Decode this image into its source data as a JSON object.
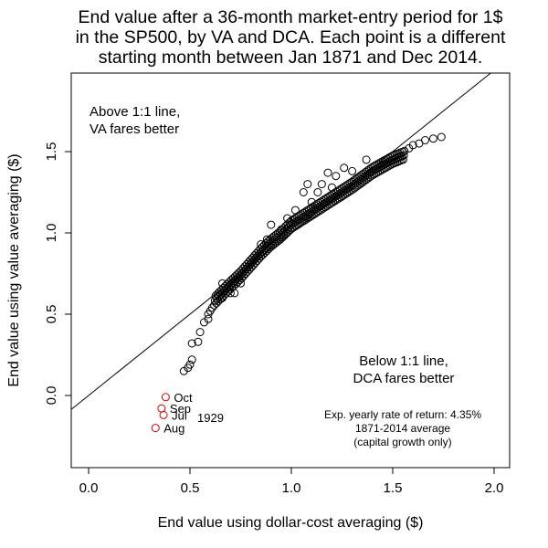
{
  "chart_data": {
    "type": "scatter",
    "title_lines": [
      "End value after a 36-month market-entry period for 1$",
      "in the SP500, by VA and DCA. Each point is a different",
      "starting month between Jan 1871 and Dec 2014."
    ],
    "xlabel": "End value using dollar-cost averaging ($)",
    "ylabel": "End value using value averaging ($)",
    "xlim": [
      0.0,
      2.0
    ],
    "ylim": [
      -0.25,
      1.85
    ],
    "x_ticks": [
      0.0,
      0.5,
      1.0,
      1.5,
      2.0
    ],
    "x_tick_labels": [
      "0.0",
      "0.5",
      "1.0",
      "1.5",
      "2.0"
    ],
    "y_ticks": [
      0.0,
      0.5,
      1.0,
      1.5
    ],
    "y_tick_labels": [
      "0.0",
      "0.5",
      "1.0",
      "1.5"
    ],
    "grid": false,
    "reference_line": {
      "label": "1:1 line",
      "slope": 1,
      "intercept": 0
    },
    "annotations": {
      "above": [
        "Above 1:1 line,",
        "VA fares better"
      ],
      "below": [
        "Below 1:1 line,",
        "DCA fares better"
      ],
      "return_note": [
        "Exp. yearly rate of return: 4.35%",
        "1871-2014 average",
        "(capital growth only)"
      ],
      "year": "1929"
    },
    "highlight_color": "#e00000",
    "point_color": "#000000",
    "highlighted_points": [
      {
        "label": "Oct",
        "x": 0.38,
        "y": -0.01
      },
      {
        "label": "Sep",
        "x": 0.36,
        "y": -0.08
      },
      {
        "label": "Jul",
        "x": 0.37,
        "y": -0.12
      },
      {
        "label": "Aug",
        "x": 0.33,
        "y": -0.2
      }
    ],
    "series": [
      {
        "scattered_points": [
          [
            0.47,
            0.15
          ],
          [
            0.49,
            0.17
          ],
          [
            0.5,
            0.19
          ],
          [
            0.51,
            0.22
          ],
          [
            0.51,
            0.32
          ],
          [
            0.54,
            0.33
          ],
          [
            0.55,
            0.39
          ],
          [
            0.57,
            0.45
          ],
          [
            0.59,
            0.47
          ],
          [
            0.59,
            0.5
          ],
          [
            0.6,
            0.52
          ],
          [
            0.61,
            0.54
          ],
          [
            0.66,
            0.6
          ],
          [
            0.66,
            0.69
          ],
          [
            0.7,
            0.63
          ],
          [
            0.72,
            0.63
          ],
          [
            0.75,
            0.69
          ],
          [
            0.9,
            1.05
          ],
          [
            1.06,
            1.25
          ],
          [
            1.08,
            1.3
          ],
          [
            1.1,
            1.19
          ],
          [
            1.15,
            1.3
          ],
          [
            1.18,
            1.37
          ],
          [
            1.22,
            1.35
          ],
          [
            1.26,
            1.4
          ],
          [
            1.3,
            1.38
          ],
          [
            1.37,
            1.45
          ],
          [
            1.58,
            1.52
          ],
          [
            1.6,
            1.54
          ],
          [
            1.63,
            1.55
          ],
          [
            1.66,
            1.57
          ],
          [
            1.7,
            1.58
          ],
          [
            1.74,
            1.59
          ],
          [
            0.95,
            1.02
          ],
          [
            0.98,
            1.09
          ],
          [
            1.02,
            1.14
          ],
          [
            1.13,
            1.25
          ],
          [
            1.2,
            1.28
          ],
          [
            0.85,
            0.93
          ],
          [
            0.88,
            0.96
          ]
        ],
        "dense_band": {
          "x_from": 0.62,
          "x_to": 1.56,
          "spacing": 0.0032,
          "curve": [
            [
              0.62,
              0.58
            ],
            [
              0.7,
              0.68
            ],
            [
              0.75,
              0.74
            ],
            [
              0.8,
              0.81
            ],
            [
              0.85,
              0.88
            ],
            [
              0.9,
              0.94
            ],
            [
              0.95,
              0.99
            ],
            [
              1.0,
              1.05
            ],
            [
              1.1,
              1.13
            ],
            [
              1.2,
              1.21
            ],
            [
              1.3,
              1.29
            ],
            [
              1.4,
              1.38
            ],
            [
              1.5,
              1.45
            ],
            [
              1.56,
              1.48
            ]
          ],
          "spread": 0.025
        }
      }
    ]
  }
}
